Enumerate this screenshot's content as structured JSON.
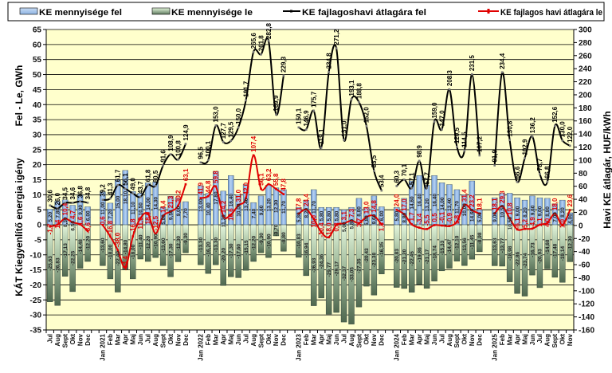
{
  "chart_data": {
    "type": "bar+line",
    "legend": [
      "KE mennyisége fel",
      "KE mennyisége le",
      "KE fajlagoshavi átlagára fel",
      "KE fajlagos havi átlagára le"
    ],
    "legend_position": "top",
    "ylabel_left": [
      "KÁT Kiegyenlítő energia igény",
      "Fel - Le, GWh"
    ],
    "ylabel_right": "Havi KE átlagár, HUF/kWh",
    "ylim_left": [
      -35,
      65
    ],
    "yticks_left": [
      65,
      60,
      55,
      50,
      45,
      40,
      35,
      30,
      25,
      20,
      15,
      10,
      5,
      0,
      -5,
      -10,
      -15,
      -20,
      -25,
      -30,
      -35
    ],
    "ylim_right": [
      -160,
      300
    ],
    "yticks_right": [
      300,
      280,
      260,
      240,
      220,
      200,
      180,
      160,
      140,
      120,
      100,
      80,
      60,
      40,
      20,
      0,
      -20,
      -40,
      -60,
      -80,
      -100,
      -120,
      -140,
      -160
    ],
    "grid": "horizontal",
    "colors": {
      "plot_bg": "#FFFFCC",
      "fel_bar": "#8DB4E2",
      "le_bar": "#5E7A5E",
      "fel_line": "#000000",
      "le_line": "#E00000"
    },
    "categories": [
      "Jul",
      "Aug",
      "Sept",
      "Okt",
      "Nov",
      "Dec",
      "Jan 2021",
      "Feb",
      "Mar",
      "Apr",
      "Maj",
      "Jun",
      "Jul",
      "Aug",
      "Sept",
      "Okt",
      "Nov",
      "Dec",
      "Jan 2022",
      "Feb",
      "Mar",
      "Apr",
      "Maj",
      "Jun",
      "Jul",
      "Aug",
      "Sept",
      "Okt",
      "Nov",
      "Dec",
      "Jan 2023",
      "Feb",
      "Mar",
      "Apr",
      "Maj",
      "Jun",
      "Jul",
      "Aug",
      "Sept",
      "Okt",
      "Nov",
      "Dec",
      "Jan 2024",
      "Feb",
      "Mar",
      "Apr",
      "Maj",
      "Jun",
      "Jul",
      "Aug",
      "Sept",
      "Okt",
      "Nov",
      "Dec",
      "Jan 2025",
      "Feb",
      "Mar",
      "Apr",
      "Maj",
      "Jun",
      "Jul",
      "Aug",
      "Sept",
      "Okt",
      "Nov"
    ],
    "series": [
      {
        "name": "KE mennyisége fel",
        "type": "bar",
        "axis": "left",
        "values": [
          5.2,
          7.8,
          8.3,
          6.5,
          9.9,
          6.0,
          11.0,
          7.2,
          15.0,
          18.1,
          11.1,
          10.5,
          14.0,
          14.3,
          5.8,
          9.5,
          9.0,
          7.7,
          13.0,
          10.4,
          17.8,
          11.2,
          16.4,
          10.0,
          13.4,
          7.4,
          9.6,
          13.2,
          12.3,
          11.7,
          5.8,
          8.2,
          11.7,
          5.8,
          5.8,
          5.8,
          5.0,
          5.8,
          8.8,
          5.8,
          9.6,
          6.0,
          5.8,
          8.8,
          14.6,
          16.4,
          13.2,
          16.4,
          14.0,
          13.4,
          11.7,
          10.0,
          14.6,
          5.0,
          9.0,
          10.5,
          10.5,
          9.0,
          8.2,
          9.6,
          9.0,
          8.8,
          7.0,
          8.2,
          4.0
        ]
      },
      {
        "name": "KE mennyisége le",
        "type": "bar",
        "axis": "left",
        "values": [
          -25.63,
          -26.83,
          -17.13,
          -22.25,
          -14.48,
          -12.2,
          -13.6,
          -18.0,
          -22.4,
          -14.8,
          -18.0,
          -11.4,
          -12.2,
          -10.9,
          -13.6,
          -17.3,
          -12.3,
          -9.3,
          -13.3,
          -16.2,
          -13.3,
          -20.2,
          -17.3,
          -17.6,
          -15.15,
          -12.2,
          -9.3,
          -10.9,
          -3.7,
          -8.8,
          -10.83,
          -16.94,
          -26.93,
          -24.36,
          -29.77,
          -29.17,
          -32.37,
          -33.05,
          -27.35,
          -20.43,
          -23.38,
          -16.35,
          -20.83,
          -21.2,
          -22.45,
          -19.86,
          -21.17,
          -18.74,
          -15.33,
          -14.47,
          -12.1,
          -13.56,
          -11.45,
          -8.98,
          -13.63,
          -13.77,
          -18.98,
          -22.86,
          -23.74,
          -16.73,
          -20.93,
          -14.68,
          -17.48,
          -19.14,
          -12.3
        ]
      },
      {
        "name": "KE fajlagoshavi átlagára fel",
        "type": "line",
        "axis": "right",
        "values": [
          30.6,
          26.0,
          34.5,
          34.6,
          36.8,
          34.8,
          39.2,
          41.3,
          61.7,
          56.1,
          49.0,
          43.7,
          61.8,
          60.5,
          91.6,
          108.9,
          100.8,
          124.9,
          96.5,
          100.1,
          153.0,
          127.7,
          129.5,
          150.0,
          191.7,
          265.6,
          261.8,
          282.8,
          169.9,
          229.3,
          150.1,
          146.9,
          175.7,
          119.1,
          234.8,
          271.2,
          131.0,
          193.1,
          188.8,
          152.0,
          83.5,
          53.4,
          60.3,
          70.1,
          57.1,
          98.9,
          57.7,
          159.0,
          147.0,
          208.3,
          120.5,
          114.5,
          231.5,
          107.2,
          91.9,
          234.4,
          130.8,
          66.6,
          102.9,
          136.2,
          78.7,
          66.8,
          152.6,
          130.0,
          122.0
        ]
      },
      {
        "name": "KE fajlagos havi átlagára le",
        "type": "line",
        "axis": "right",
        "values": [
          -1.7,
          1.4,
          10.4,
          4.7,
          1.6,
          -8.6,
          0.6,
          -16.8,
          -38.0,
          -64.4,
          -16.8,
          11.0,
          18.0,
          -12.5,
          14.4,
          21.3,
          30.2,
          63.1,
          41.9,
          44.8,
          59.8,
          14.2,
          16.6,
          31.0,
          42.0,
          107.4,
          56.1,
          63.2,
          55.8,
          47.8,
          17.8,
          24.4,
          10.0,
          -10.4,
          -18.0,
          0.8,
          3.1,
          7.3,
          3.7,
          13.0,
          14.8,
          1.3,
          24.0,
          17.0,
          1.7,
          -3.4,
          -5.5,
          0.5,
          -0.1,
          -0.9,
          5.8,
          31.4,
          23.2,
          18.1,
          18.1,
          29.3,
          10.8,
          -6.1,
          -5.2,
          -4.9,
          1.1,
          4.0,
          18.0,
          1.0,
          23.6
        ]
      }
    ]
  }
}
